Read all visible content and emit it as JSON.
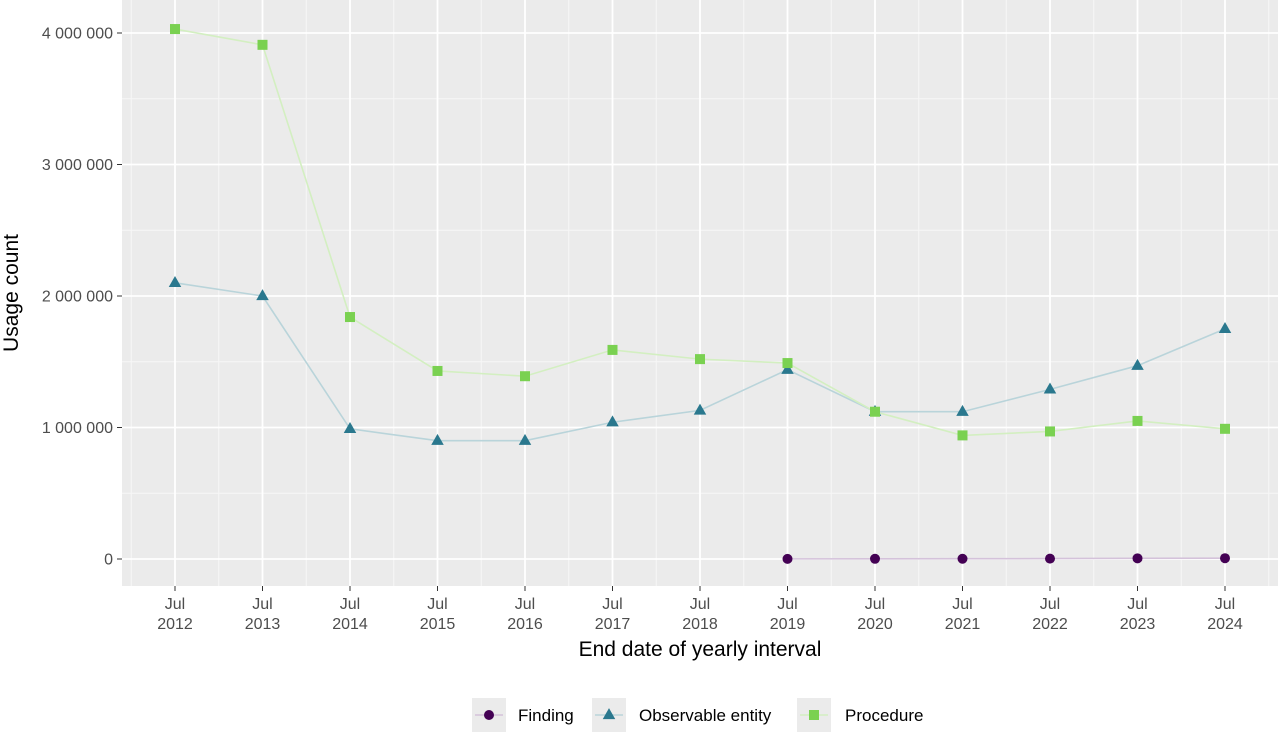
{
  "chart_data": {
    "type": "line",
    "title": "",
    "xlabel": "End date of yearly interval",
    "ylabel": "Usage count",
    "x": [
      "Jul 2012",
      "Jul 2013",
      "Jul 2014",
      "Jul 2015",
      "Jul 2016",
      "Jul 2017",
      "Jul 2018",
      "Jul 2019",
      "Jul 2020",
      "Jul 2021",
      "Jul 2022",
      "Jul 2023",
      "Jul 2024"
    ],
    "x_tick_labels": [
      {
        "month": "Jul",
        "year": "2012"
      },
      {
        "month": "Jul",
        "year": "2013"
      },
      {
        "month": "Jul",
        "year": "2014"
      },
      {
        "month": "Jul",
        "year": "2015"
      },
      {
        "month": "Jul",
        "year": "2016"
      },
      {
        "month": "Jul",
        "year": "2017"
      },
      {
        "month": "Jul",
        "year": "2018"
      },
      {
        "month": "Jul",
        "year": "2019"
      },
      {
        "month": "Jul",
        "year": "2020"
      },
      {
        "month": "Jul",
        "year": "2021"
      },
      {
        "month": "Jul",
        "year": "2022"
      },
      {
        "month": "Jul",
        "year": "2023"
      },
      {
        "month": "Jul",
        "year": "2024"
      }
    ],
    "y_ticks": [
      0,
      1000000,
      2000000,
      3000000,
      4000000
    ],
    "y_tick_labels": [
      "0",
      "1 000 000",
      "2 000 000",
      "3 000 000",
      "4 000 000"
    ],
    "ylim": [
      -200000,
      4200000
    ],
    "grid": true,
    "legend_position": "bottom",
    "series": [
      {
        "name": "Finding",
        "marker": "circle",
        "color": "#440154",
        "line_color": "#d4c2da",
        "values": [
          null,
          null,
          null,
          null,
          null,
          null,
          null,
          1000,
          1500,
          2000,
          3000,
          5000,
          6000
        ]
      },
      {
        "name": "Observable entity",
        "marker": "triangle",
        "color": "#2a788e",
        "line_color": "#b9d4da",
        "values": [
          2100000,
          2000000,
          990000,
          900000,
          900000,
          1040000,
          1130000,
          1440000,
          1120000,
          1120000,
          1290000,
          1470000,
          1750000
        ]
      },
      {
        "name": "Procedure",
        "marker": "square",
        "color": "#7ad151",
        "line_color": "#d3efc1",
        "values": [
          4030000,
          3910000,
          1840000,
          1430000,
          1390000,
          1590000,
          1520000,
          1490000,
          1120000,
          940000,
          970000,
          1050000,
          990000
        ]
      }
    ]
  }
}
